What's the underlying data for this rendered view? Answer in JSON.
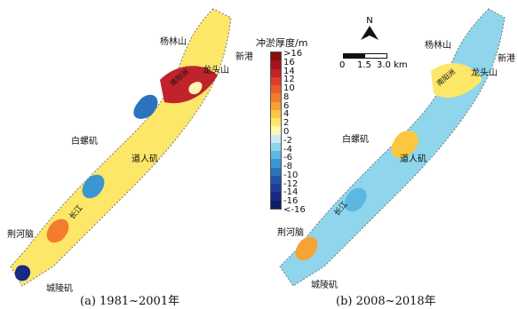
{
  "legend": {
    "title": "冲淤厚度/m",
    "labels": [
      ">16",
      "16",
      "14",
      "12",
      "10",
      "8",
      "6",
      "4",
      "2",
      "0",
      "-2",
      "-4",
      "-6",
      "-8",
      "-10",
      "-12",
      "-14",
      "-16",
      "<-16"
    ],
    "colors": [
      "#8b0a0a",
      "#a3141a",
      "#c0232b",
      "#d8402b",
      "#ea5b2c",
      "#f27d2e",
      "#f7a234",
      "#fbc741",
      "#fde768",
      "#fff7b0",
      "#c8ecf4",
      "#8fd6ec",
      "#5cb8e0",
      "#3c96d1",
      "#2b73bd",
      "#2353a8",
      "#1e3d95",
      "#182a82",
      "#101c66"
    ]
  },
  "compass": {
    "north_label": "N"
  },
  "scale": {
    "labels": [
      "0",
      "1.5",
      "3.0 km"
    ]
  },
  "panels": [
    {
      "caption": "(a) 1981~2001年",
      "places": {
        "yanglinshan": "杨林山",
        "xingang": "新港",
        "longtoushan": "龙头山",
        "baiLuoji": "白螺矶",
        "daorenji": "道人矶",
        "jingheno": "荆河脑",
        "chenglingji": "城陵矶",
        "river": "长江",
        "zhou": "南阳洲"
      }
    },
    {
      "caption": "(b) 2008~2018年",
      "places": {
        "yanglinshan": "杨林山",
        "xingang": "新港",
        "longtoushan": "龙头山",
        "baiLuoji": "白螺矶",
        "daorenji": "道人矶",
        "jingheno": "荆河脑",
        "chenglingji": "城陵矶",
        "river": "长江",
        "zhou": "南阳洲"
      }
    }
  ]
}
